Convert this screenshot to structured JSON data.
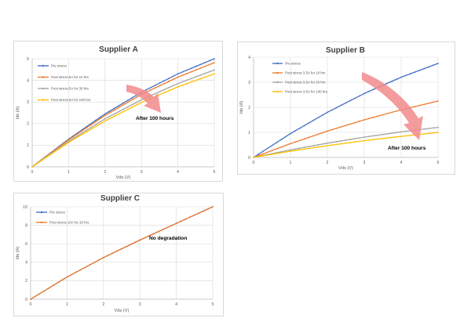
{
  "colors": {
    "pre_stress": "#4472C4",
    "post_1": "#ED7D31",
    "post_2": "#A5A5A5",
    "post_3": "#FFC000",
    "arrow": "#F28A8C",
    "grid": "#d9d9d9"
  },
  "chart_data": [
    {
      "type": "line",
      "title": "Supplier A",
      "xlabel": "Vds (V)",
      "ylabel": "Ids (A)",
      "xlim": [
        0,
        5
      ],
      "ylim": [
        0,
        5
      ],
      "xticks": [
        "0",
        "1",
        "2",
        "3",
        "4",
        "5"
      ],
      "yticks": [
        "0",
        "1",
        "2",
        "3",
        "4",
        "5"
      ],
      "grid": true,
      "legend": "top-left",
      "annotation": "After 100 hours",
      "x": [
        0,
        1,
        2,
        3,
        4,
        5
      ],
      "series": [
        {
          "name": "Pre stress",
          "color": "#4472C4",
          "values": [
            0,
            1.28,
            2.45,
            3.45,
            4.3,
            5.0
          ]
        },
        {
          "name": "Post stress 5A for 10 hrs",
          "color": "#ED7D31",
          "values": [
            0,
            1.25,
            2.38,
            3.35,
            4.15,
            4.82
          ]
        },
        {
          "name": "Post stress 5A for 30 hrs",
          "color": "#A5A5A5",
          "values": [
            0,
            1.18,
            2.22,
            3.1,
            3.85,
            4.48
          ]
        },
        {
          "name": "Post stress 5A for 100 hrs",
          "color": "#FFC000",
          "values": [
            0,
            1.13,
            2.12,
            2.98,
            3.7,
            4.3
          ]
        }
      ]
    },
    {
      "type": "line",
      "title": "Supplier B",
      "xlabel": "Vds (V)",
      "ylabel": "Ids (A)",
      "xlim": [
        0,
        5
      ],
      "ylim": [
        0,
        4
      ],
      "xticks": [
        "0",
        "1",
        "2",
        "3",
        "4",
        "5"
      ],
      "yticks": [
        "0",
        "1",
        "2",
        "3",
        "4"
      ],
      "grid": true,
      "legend": "top-left",
      "annotation": "After 100 hours",
      "x": [
        0,
        1,
        2,
        3,
        4,
        5
      ],
      "series": [
        {
          "name": "Pre stress",
          "color": "#4472C4",
          "values": [
            0,
            0.95,
            1.8,
            2.55,
            3.2,
            3.75
          ]
        },
        {
          "name": "Post stress 3.5A for 10 hrs",
          "color": "#ED7D31",
          "values": [
            0,
            0.55,
            1.05,
            1.5,
            1.9,
            2.25
          ]
        },
        {
          "name": "Post stress 3.5A for 20 hrs",
          "color": "#A5A5A5",
          "values": [
            0,
            0.3,
            0.57,
            0.81,
            1.02,
            1.2
          ]
        },
        {
          "name": "Post stress 3.5A for 100 hrs",
          "color": "#FFC000",
          "values": [
            0,
            0.25,
            0.47,
            0.67,
            0.84,
            1.0
          ]
        }
      ]
    },
    {
      "type": "line",
      "title": "Supplier C",
      "xlabel": "Vds (V)",
      "ylabel": "Ids (A)",
      "xlim": [
        0,
        5
      ],
      "ylim": [
        0,
        10
      ],
      "xticks": [
        "0",
        "1",
        "2",
        "3",
        "4",
        "5"
      ],
      "yticks": [
        "0",
        "2",
        "4",
        "6",
        "8",
        "10"
      ],
      "grid": true,
      "legend": "top-left",
      "annotation": "No degradation",
      "x": [
        0,
        1,
        2,
        3,
        4,
        5
      ],
      "series": [
        {
          "name": "Pre stress",
          "color": "#4472C4",
          "values": [
            0,
            2.4,
            4.5,
            6.4,
            8.2,
            10.0
          ]
        },
        {
          "name": "Post stress 10A for 20 hrs",
          "color": "#ED7D31",
          "values": [
            0,
            2.4,
            4.5,
            6.4,
            8.2,
            10.0
          ]
        }
      ]
    }
  ]
}
